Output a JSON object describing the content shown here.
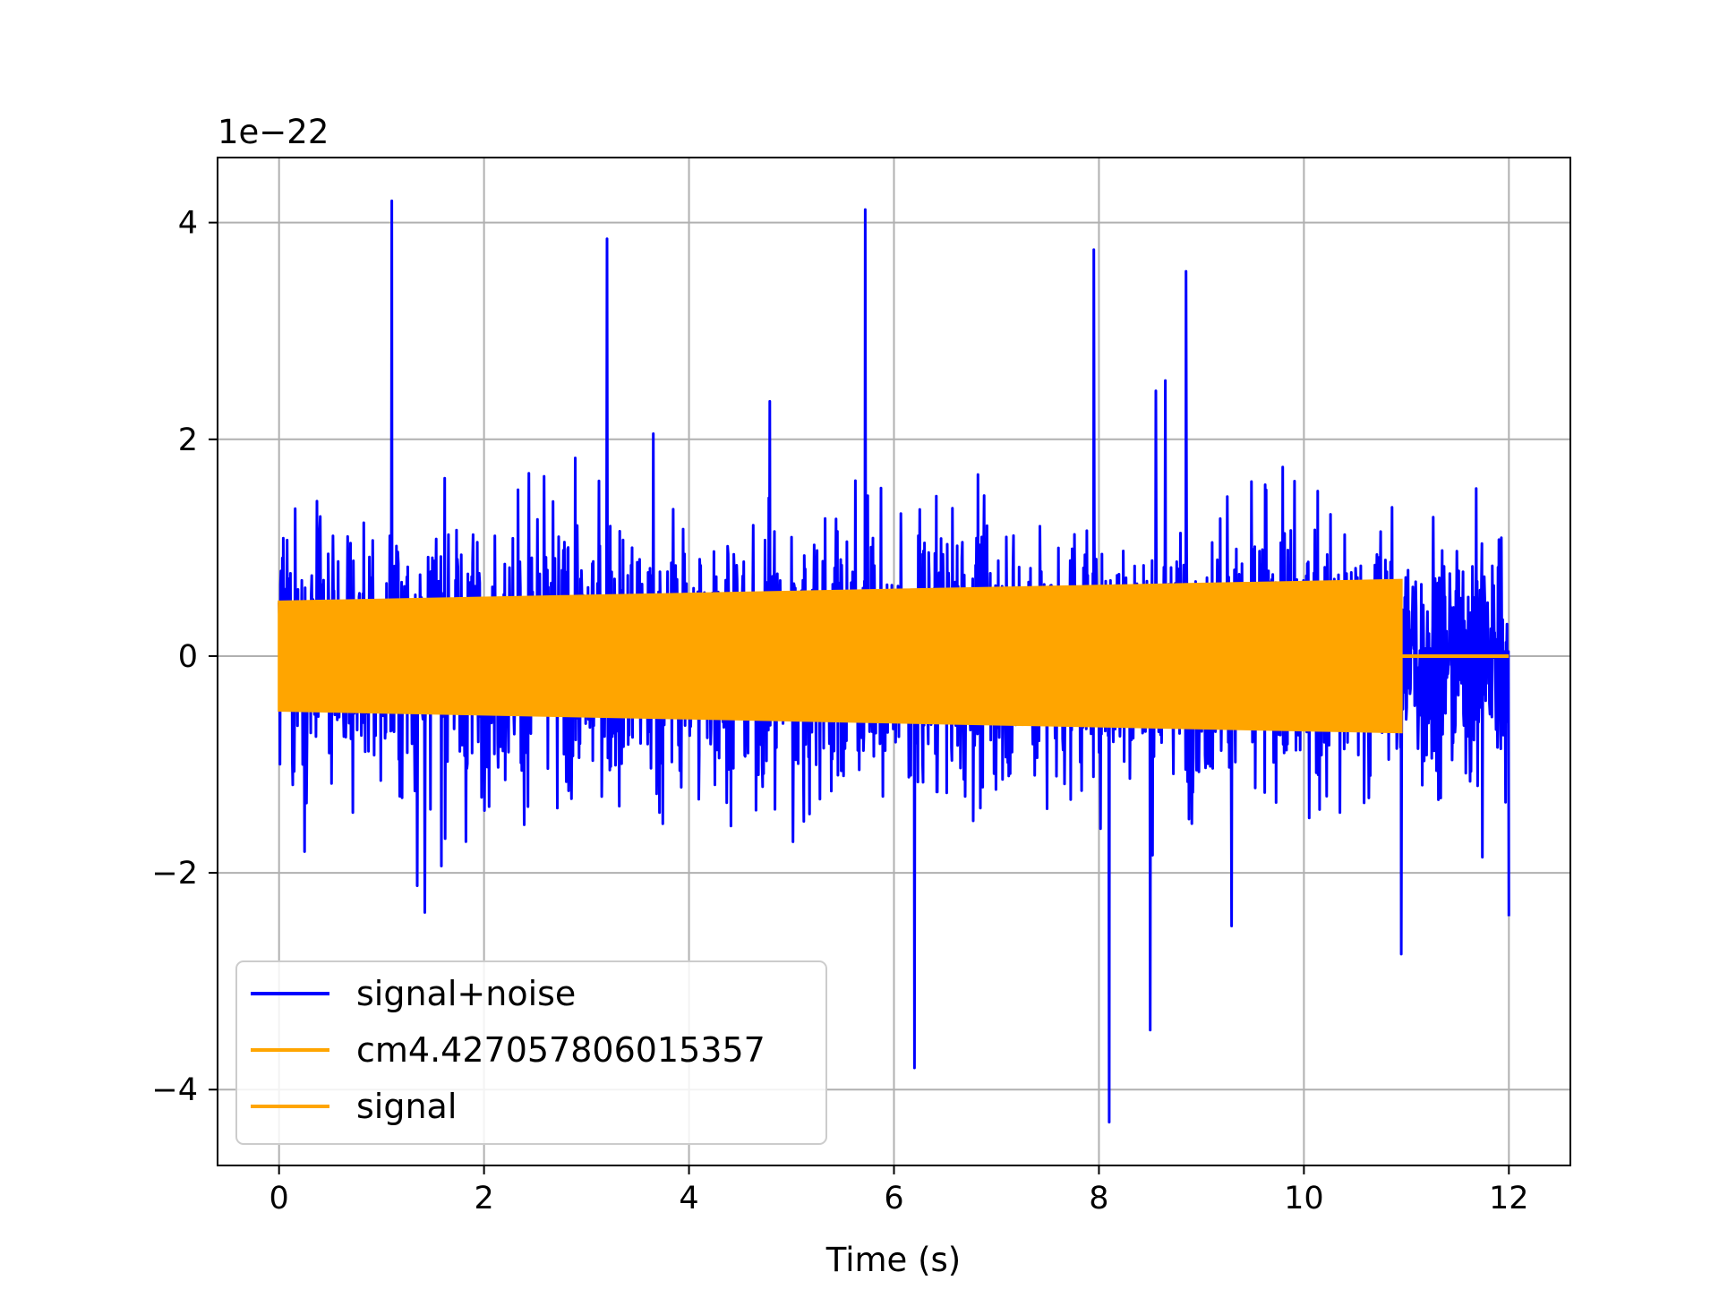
{
  "chart_data": {
    "type": "line",
    "title": "",
    "xlabel": "Time (s)",
    "ylabel": "",
    "y_offset_label": "1e−22",
    "xlim": [
      -0.6,
      12.6
    ],
    "ylim": [
      -4.7,
      4.6
    ],
    "xticks": [
      0,
      2,
      4,
      6,
      8,
      10,
      12
    ],
    "yticks": [
      -4,
      -2,
      0,
      2,
      4
    ],
    "xtick_labels": [
      "0",
      "2",
      "4",
      "6",
      "8",
      "10",
      "12"
    ],
    "ytick_labels": [
      "−4",
      "−2",
      "0",
      "2",
      "4"
    ],
    "grid": true,
    "legend_position": "lower-left",
    "series": [
      {
        "name": "signal+noise",
        "color": "#0000ff",
        "t_start": 0,
        "t_end": 12,
        "typical_amplitude": 1.0,
        "envelope_max": 4.2,
        "envelope_min": -4.3,
        "peaks": [
          {
            "x": 1.1,
            "y": 4.2
          },
          {
            "x": 3.2,
            "y": 3.85
          },
          {
            "x": 5.72,
            "y": 4.12
          },
          {
            "x": 7.95,
            "y": 3.75
          },
          {
            "x": 8.85,
            "y": 3.55
          },
          {
            "x": 6.2,
            "y": -3.8
          },
          {
            "x": 8.1,
            "y": -4.3
          },
          {
            "x": 8.5,
            "y": -3.45
          },
          {
            "x": 10.95,
            "y": -2.75
          },
          {
            "x": 12.0,
            "y": -2.4
          }
        ]
      },
      {
        "name": "cm4.427057806015357",
        "color": "#ffa500",
        "t_start": 0,
        "t_end": 10.95,
        "amplitude_start": 0.5,
        "amplitude_end": 0.7
      },
      {
        "name": "signal",
        "color": "#ffa500",
        "t_start": 0,
        "t_end": 12,
        "amplitude_start": 0.5,
        "amplitude_end": 0.7,
        "zero_after": 10.95
      }
    ]
  }
}
